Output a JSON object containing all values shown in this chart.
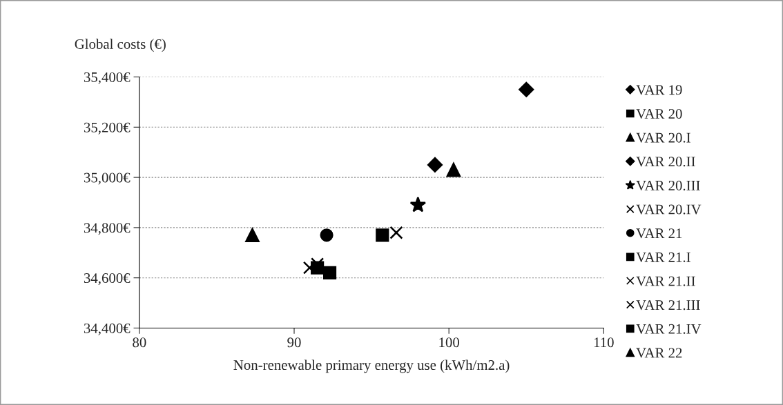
{
  "chart_data": {
    "type": "scatter",
    "xlabel": "Non-renewable primary energy use (kWh/m2.a)",
    "ylabel": "Global costs (€)",
    "xlim": [
      80,
      110
    ],
    "xticks": [
      80,
      90,
      100,
      110
    ],
    "ylim": [
      34400,
      35400
    ],
    "yticks": [
      {
        "value": 34400,
        "label": "34,400€"
      },
      {
        "value": 34600,
        "label": "34,600€"
      },
      {
        "value": 34800,
        "label": "34,800€"
      },
      {
        "value": 35000,
        "label": "35,000€"
      },
      {
        "value": 35200,
        "label": "35,200€"
      },
      {
        "value": 35400,
        "label": "35,400€"
      }
    ],
    "grid": "y",
    "legend": "right",
    "series": [
      {
        "name": "VAR 19",
        "color": "#000000",
        "marker": "diamond",
        "x": [
          105.0
        ],
        "values": [
          35350
        ]
      },
      {
        "name": "VAR 20",
        "color": "#000000",
        "marker": "square",
        "x": [
          95.7
        ],
        "values": [
          34770
        ]
      },
      {
        "name": "VAR 20.I",
        "color": "#000000",
        "marker": "triangle",
        "x": [
          100.3
        ],
        "values": [
          35030
        ]
      },
      {
        "name": "VAR 20.II",
        "color": "#000000",
        "marker": "diamond",
        "x": [
          99.1
        ],
        "values": [
          35050
        ]
      },
      {
        "name": "VAR 20.III",
        "color": "#000000",
        "marker": "star",
        "x": [
          98.0
        ],
        "values": [
          34890
        ]
      },
      {
        "name": "VAR 20.IV",
        "color": "#000000",
        "marker": "cross",
        "x": [
          96.6
        ],
        "values": [
          34780
        ]
      },
      {
        "name": "VAR 21",
        "color": "#000000",
        "marker": "circle",
        "x": [
          92.1
        ],
        "values": [
          34770
        ]
      },
      {
        "name": "VAR 21.I",
        "color": "#000000",
        "marker": "square",
        "x": [
          92.3
        ],
        "values": [
          34620
        ]
      },
      {
        "name": "VAR 21.II",
        "color": "#000000",
        "marker": "cross",
        "x": [
          91.0
        ],
        "values": [
          34640
        ]
      },
      {
        "name": "VAR 21.III",
        "color": "#000000",
        "marker": "cross",
        "x": [
          91.5
        ],
        "values": [
          34655
        ]
      },
      {
        "name": "VAR 21.IV",
        "color": "#000000",
        "marker": "square",
        "x": [
          91.5
        ],
        "values": [
          34640
        ]
      },
      {
        "name": "VAR 22",
        "color": "#000000",
        "marker": "triangle",
        "x": [
          87.3
        ],
        "values": [
          34770
        ]
      }
    ]
  }
}
